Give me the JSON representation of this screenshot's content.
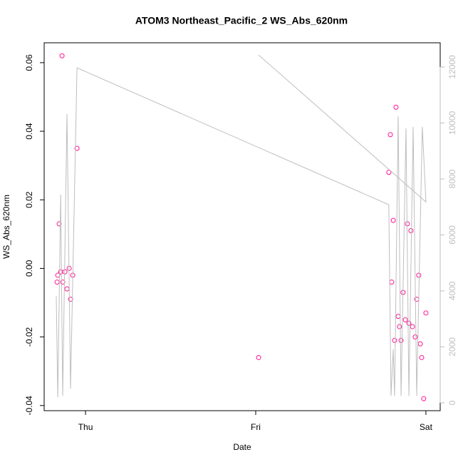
{
  "chart_data": {
    "type": "scatter",
    "title": "ATOM3 Northeast_Pacific_2 WS_Abs_620nm",
    "x_label": "Date",
    "y_label": "WS_Abs_620nm",
    "xlim": [
      -0.243,
      2.084
    ],
    "xticks": [
      {
        "value": 0,
        "label": "Thu"
      },
      {
        "value": 1,
        "label": "Fri"
      },
      {
        "value": 2,
        "label": "Sat"
      }
    ],
    "ylim": [
      -0.0415,
      0.0658
    ],
    "yticks": [
      -0.04,
      -0.02,
      {
        "value": 0,
        "label": "0.00"
      },
      0.02,
      0.04,
      0.06
    ],
    "y2lim": [
      -280,
      12866
    ],
    "y2ticks": [
      0,
      2000,
      4000,
      6000,
      8000,
      10000,
      12000
    ],
    "y2_color": "#bebebe",
    "series": [
      {
        "type": "scatter",
        "color": "#ff1493",
        "x": [
          -0.167,
          -0.163,
          -0.155,
          -0.146,
          -0.138,
          -0.134,
          -0.121,
          -0.109,
          -0.096,
          -0.088,
          -0.075,
          -0.05,
          1.017,
          1.782,
          1.791,
          1.799,
          1.808,
          1.816,
          1.824,
          1.837,
          1.845,
          1.854,
          1.866,
          1.879,
          1.891,
          1.9,
          1.912,
          1.921,
          1.937,
          1.946,
          1.958,
          1.967,
          1.975,
          1.987,
          2.0
        ],
        "values": [
          -0.004,
          -0.002,
          0.013,
          -0.001,
          0.062,
          -0.004,
          -0.001,
          -0.006,
          0.0,
          -0.009,
          -0.002,
          0.035,
          -0.026,
          0.028,
          0.039,
          -0.004,
          0.014,
          -0.021,
          0.047,
          -0.014,
          -0.017,
          -0.021,
          -0.007,
          -0.015,
          0.013,
          -0.016,
          0.011,
          -0.017,
          -0.02,
          -0.009,
          -0.002,
          -0.022,
          -0.026,
          -0.038,
          -0.013
        ]
      },
      {
        "type": "line",
        "axis": "y2",
        "color": "#bebebe",
        "x": [
          -0.172,
          -0.163,
          -0.146,
          -0.134,
          -0.109,
          -0.088,
          -0.05,
          1.782,
          1.795,
          1.808,
          1.816,
          1.837,
          1.854,
          1.883,
          1.9,
          1.925,
          1.946,
          1.979,
          2.0,
          1.017
        ],
        "values": [
          3820,
          200,
          7440,
          250,
          10320,
          510,
          11970,
          7080,
          250,
          1910,
          250,
          10240,
          250,
          9810,
          250,
          9860,
          250,
          9860,
          7180,
          12430
        ]
      }
    ]
  }
}
